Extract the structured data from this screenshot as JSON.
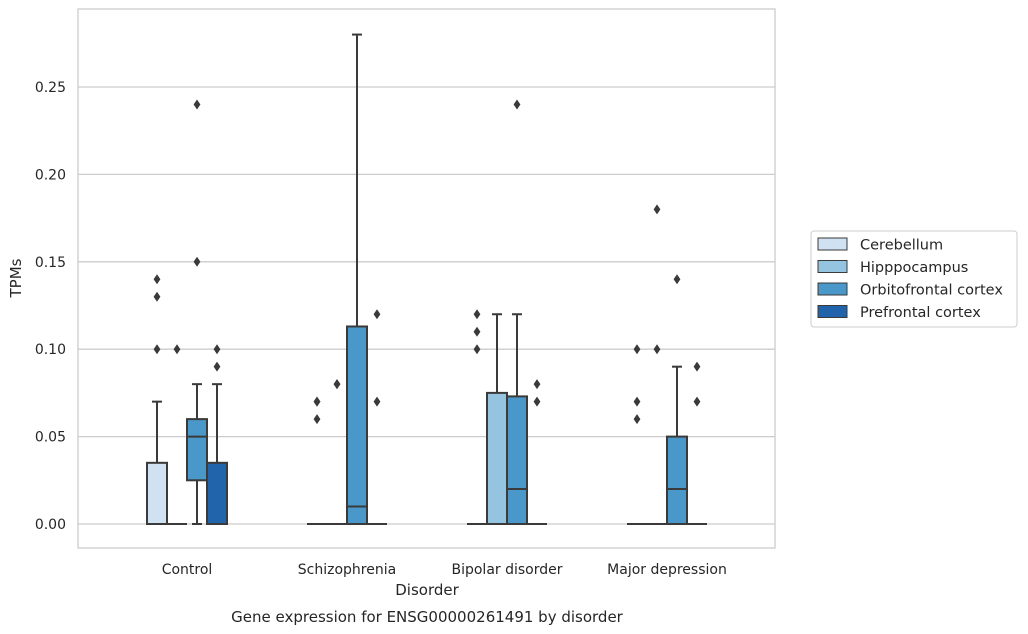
{
  "chart_data": {
    "type": "box",
    "title": "Gene expression for ENSG00000261491 by disorder",
    "xlabel": "Disorder",
    "ylabel": "TPMs",
    "ylim": [
      -0.014,
      0.295
    ],
    "yticks": [
      0.0,
      0.05,
      0.1,
      0.15,
      0.2,
      0.25
    ],
    "ytick_labels": [
      "0.00",
      "0.05",
      "0.10",
      "0.15",
      "0.20",
      "0.25"
    ],
    "grid": "horizontal",
    "legend": {
      "placement": "right",
      "entries": [
        "Cerebellum",
        "Hipppocampus",
        "Orbitofrontal cortex",
        "Prefrontal cortex"
      ]
    },
    "categories": [
      "Control",
      "Schizophrenia",
      "Bipolar disorder",
      "Major depression"
    ],
    "series": [
      {
        "name": "Cerebellum",
        "color": "#d0e1f2",
        "boxes": [
          {
            "q1": 0.0,
            "median": 0.0,
            "q3": 0.035,
            "whislo": 0.0,
            "whishi": 0.07,
            "fliers": [
              0.1,
              0.13,
              0.14
            ]
          },
          {
            "q1": 0.0,
            "median": 0.0,
            "q3": 0.0,
            "whislo": 0.0,
            "whishi": 0.0,
            "fliers": [
              0.06,
              0.07,
              0.07
            ]
          },
          {
            "q1": 0.0,
            "median": 0.0,
            "q3": 0.0,
            "whislo": 0.0,
            "whishi": 0.0,
            "fliers": [
              0.1,
              0.11,
              0.12
            ]
          },
          {
            "q1": 0.0,
            "median": 0.0,
            "q3": 0.0,
            "whislo": 0.0,
            "whishi": 0.0,
            "fliers": [
              0.06,
              0.07,
              0.1
            ]
          }
        ]
      },
      {
        "name": "Hipppocampus",
        "color": "#94c4df",
        "boxes": [
          {
            "q1": 0.0,
            "median": 0.0,
            "q3": 0.0,
            "whislo": 0.0,
            "whishi": 0.0,
            "fliers": [
              0.1
            ]
          },
          {
            "q1": 0.0,
            "median": 0.0,
            "q3": 0.0,
            "whislo": 0.0,
            "whishi": 0.0,
            "fliers": [
              0.08,
              0.08
            ]
          },
          {
            "q1": 0.0,
            "median": 0.0,
            "q3": 0.075,
            "whislo": 0.0,
            "whishi": 0.12,
            "fliers": []
          },
          {
            "q1": 0.0,
            "median": 0.0,
            "q3": 0.0,
            "whislo": 0.0,
            "whishi": 0.0,
            "fliers": [
              0.1,
              0.18
            ]
          }
        ]
      },
      {
        "name": "Orbitofrontal cortex",
        "color": "#4a98c9",
        "boxes": [
          {
            "q1": 0.025,
            "median": 0.05,
            "q3": 0.06,
            "whislo": 0.0,
            "whishi": 0.08,
            "fliers": [
              0.15,
              0.24
            ]
          },
          {
            "q1": 0.0,
            "median": 0.01,
            "q3": 0.113,
            "whislo": 0.0,
            "whishi": 0.28,
            "fliers": []
          },
          {
            "q1": 0.0,
            "median": 0.02,
            "q3": 0.073,
            "whislo": 0.0,
            "whishi": 0.12,
            "fliers": [
              0.24
            ]
          },
          {
            "q1": 0.0,
            "median": 0.02,
            "q3": 0.05,
            "whislo": 0.0,
            "whishi": 0.09,
            "fliers": [
              0.14
            ]
          }
        ]
      },
      {
        "name": "Prefrontal cortex",
        "color": "#2164ab",
        "boxes": [
          {
            "q1": 0.0,
            "median": 0.0,
            "q3": 0.035,
            "whislo": 0.0,
            "whishi": 0.08,
            "fliers": [
              0.09,
              0.1
            ]
          },
          {
            "q1": 0.0,
            "median": 0.0,
            "q3": 0.0,
            "whislo": 0.0,
            "whishi": 0.0,
            "fliers": [
              0.07,
              0.12
            ]
          },
          {
            "q1": 0.0,
            "median": 0.0,
            "q3": 0.0,
            "whislo": 0.0,
            "whishi": 0.0,
            "fliers": [
              0.07,
              0.08
            ]
          },
          {
            "q1": 0.0,
            "median": 0.0,
            "q3": 0.0,
            "whislo": 0.0,
            "whishi": 0.0,
            "fliers": [
              0.07,
              0.09
            ]
          }
        ]
      }
    ]
  }
}
